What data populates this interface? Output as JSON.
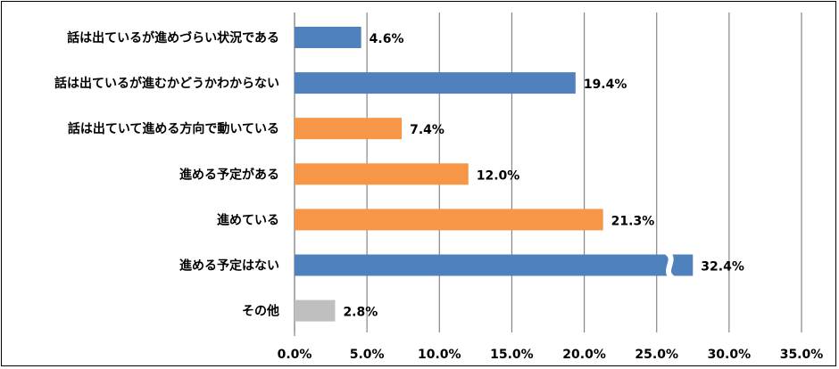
{
  "chart_data": {
    "type": "bar",
    "orientation": "horizontal",
    "categories": [
      "話は出ているが進めづらい状況である",
      "話は出ているが進むかどうかわからない",
      "話は出ていて進める方向で動いている",
      "進める予定がある",
      "進めている",
      "進める予定はない",
      "その他"
    ],
    "values": [
      4.6,
      19.4,
      7.4,
      12.0,
      21.3,
      32.4,
      2.8
    ],
    "value_labels": [
      "4.6%",
      "19.4%",
      "7.4%",
      "12.0%",
      "21.3%",
      "32.4%",
      "2.8%"
    ],
    "bar_colors": [
      "#4f81bd",
      "#4f81bd",
      "#f79646",
      "#f79646",
      "#f79646",
      "#4f81bd",
      "#bfbfbf"
    ],
    "axis_break_on": "進める予定はない",
    "xlim": [
      0,
      35
    ],
    "xticks": [
      "0.0%",
      "5.0%",
      "10.0%",
      "15.0%",
      "20.0%",
      "25.0%",
      "30.0%",
      "35.0%"
    ],
    "grid": true,
    "title": "",
    "xlabel": "",
    "ylabel": ""
  }
}
